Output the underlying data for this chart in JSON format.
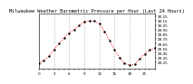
{
  "title": "Milwaukee Weather Barometric Pressure per Hour (Last 24 Hours)",
  "hours": [
    0,
    1,
    2,
    3,
    4,
    5,
    6,
    7,
    8,
    9,
    10,
    11,
    12,
    13,
    14,
    15,
    16,
    17,
    18,
    19,
    20,
    21,
    22,
    23
  ],
  "pressure": [
    29.22,
    29.28,
    29.38,
    29.52,
    29.65,
    29.78,
    29.88,
    29.96,
    30.05,
    30.12,
    30.15,
    30.14,
    30.08,
    29.92,
    29.72,
    29.52,
    29.35,
    29.22,
    29.18,
    29.2,
    29.32,
    29.42,
    29.52,
    29.55
  ],
  "ylim": [
    29.1,
    30.3
  ],
  "ytick_values": [
    30.25,
    30.15,
    30.05,
    29.95,
    29.85,
    29.75,
    29.65,
    29.55,
    29.45,
    29.35,
    29.25
  ],
  "line_color": "#ff0000",
  "marker_color": "#000000",
  "bg_color": "#ffffff",
  "grid_color": "#999999",
  "title_fontsize": 3.8,
  "tick_fontsize": 3.0
}
